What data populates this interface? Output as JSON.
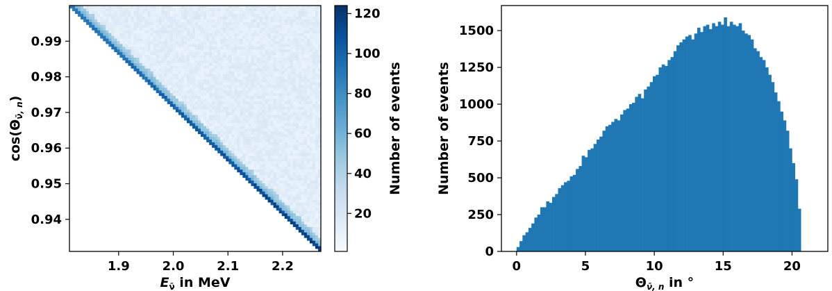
{
  "chart_data": [
    {
      "type": "heatmap",
      "xlabel": "E_ν̄ in MeV",
      "ylabel": "cos(Θ_ν̄,n)",
      "xlim": [
        1.81,
        2.27
      ],
      "ylim": [
        0.931,
        1.0
      ],
      "x_ticks": [
        "1.9",
        "2.0",
        "2.1",
        "2.2"
      ],
      "x_tick_values": [
        1.9,
        2.0,
        2.1,
        2.2
      ],
      "y_ticks": [
        "0.99",
        "0.98",
        "0.97",
        "0.96",
        "0.95",
        "0.94"
      ],
      "y_tick_values": [
        0.99,
        0.98,
        0.97,
        0.96,
        0.95,
        0.94
      ],
      "colormap": "Blues",
      "colorbar": {
        "label": "Number of events",
        "range": [
          1,
          124
        ],
        "ticks": [
          "20",
          "40",
          "60",
          "80",
          "100",
          "120"
        ],
        "tick_values": [
          20,
          40,
          60,
          80,
          100,
          120
        ]
      },
      "description_of_distribution": {
        "boundary_line": {
          "from": [
            1.81,
            1.0
          ],
          "to": [
            2.27,
            0.931
          ]
        },
        "edge_counts_range": [
          70,
          120
        ],
        "interior_counts_range": [
          8,
          20
        ]
      },
      "grid": false
    },
    {
      "type": "bar",
      "xlabel": "Θ_ν̄,n in °",
      "ylabel": "Number of events",
      "xlim": [
        -1.1,
        22.6
      ],
      "ylim": [
        0,
        1670
      ],
      "x_ticks": [
        "0",
        "5",
        "10",
        "15",
        "20"
      ],
      "x_tick_values": [
        0,
        5,
        10,
        15,
        20
      ],
      "y_ticks": [
        "0",
        "250",
        "500",
        "750",
        "1000",
        "1250",
        "1500"
      ],
      "y_tick_values": [
        0,
        250,
        500,
        750,
        1000,
        1250,
        1500
      ],
      "bin_start": 0,
      "bin_width": 0.215,
      "values": [
        30,
        70,
        110,
        130,
        160,
        190,
        230,
        250,
        300,
        300,
        340,
        330,
        370,
        390,
        430,
        450,
        470,
        480,
        510,
        520,
        560,
        580,
        650,
        640,
        690,
        700,
        730,
        760,
        780,
        820,
        850,
        860,
        880,
        900,
        890,
        930,
        960,
        970,
        1000,
        1010,
        1050,
        1070,
        1040,
        1100,
        1120,
        1150,
        1190,
        1200,
        1250,
        1270,
        1260,
        1300,
        1320,
        1360,
        1400,
        1420,
        1440,
        1460,
        1470,
        1440,
        1480,
        1520,
        1490,
        1530,
        1540,
        1510,
        1550,
        1530,
        1560,
        1540,
        1590,
        1530,
        1560,
        1540,
        1530,
        1550,
        1500,
        1480,
        1470,
        1440,
        1380,
        1360,
        1320,
        1300,
        1250,
        1200,
        1150,
        1080,
        1020,
        950,
        890,
        820,
        700,
        600,
        490,
        290
      ],
      "color": "#1f77b4",
      "grid": false
    }
  ]
}
